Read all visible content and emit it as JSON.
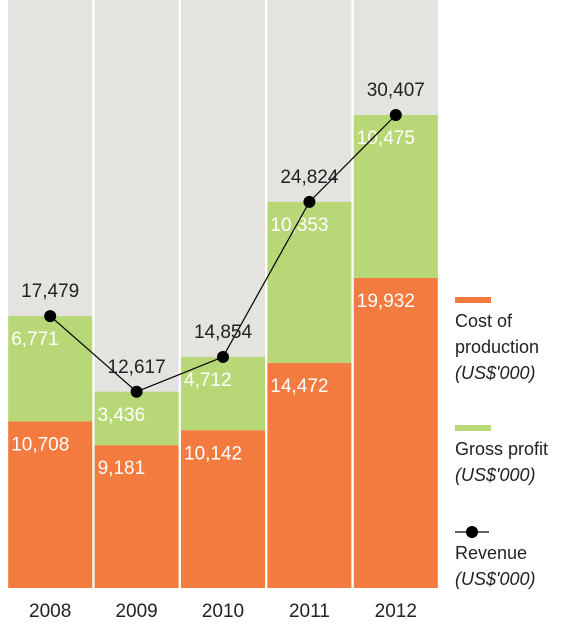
{
  "chart_data": {
    "type": "bar",
    "stacked": true,
    "categories": [
      "2008",
      "2009",
      "2010",
      "2011",
      "2012"
    ],
    "ylim": [
      0,
      37800
    ],
    "background_color": "#e4e3df",
    "series": [
      {
        "name": "Cost of production",
        "unit": "(US$'000)",
        "color": "#f47b40",
        "values": [
          10708,
          9181,
          10142,
          14472,
          19932
        ],
        "value_labels": [
          "10,708",
          "9,181",
          "10,142",
          "14,472",
          "19,932"
        ]
      },
      {
        "name": "Gross profit",
        "unit": "(US$'000)",
        "color": "#b8d878",
        "values": [
          6771,
          3436,
          4712,
          10353,
          10475
        ],
        "value_labels": [
          "6,771",
          "3,436",
          "4,712",
          "10,353",
          "10,475"
        ]
      },
      {
        "name": "Revenue",
        "unit": "(US$'000)",
        "type": "line",
        "color": "#000000",
        "values": [
          17479,
          12617,
          14854,
          24824,
          30407
        ],
        "value_labels": [
          "17,479",
          "12,617",
          "14,854",
          "24,824",
          "30,407"
        ]
      }
    ]
  }
}
